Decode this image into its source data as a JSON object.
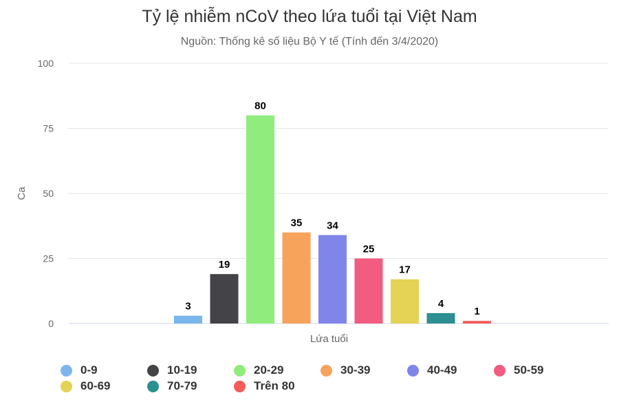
{
  "chart_data": {
    "type": "bar",
    "title": "Tỷ lệ nhiễm nCoV theo lứa tuổi tại Việt Nam",
    "subtitle": "Nguồn: Thống kê số liệu Bộ Y tế (Tính đến 3/4/2020)",
    "xlabel": "Lứa tuổi",
    "ylabel": "Ca",
    "ylim": [
      0,
      100
    ],
    "yticks": [
      0,
      25,
      50,
      75,
      100
    ],
    "grid": true,
    "legend_position": "bottom",
    "series": [
      {
        "name": "0-9",
        "value": 3,
        "color": "#7cb5ec"
      },
      {
        "name": "10-19",
        "value": 19,
        "color": "#434348"
      },
      {
        "name": "20-29",
        "value": 80,
        "color": "#90ed7d"
      },
      {
        "name": "30-39",
        "value": 35,
        "color": "#f7a35c"
      },
      {
        "name": "40-49",
        "value": 34,
        "color": "#8085e9"
      },
      {
        "name": "50-59",
        "value": 25,
        "color": "#f15c80"
      },
      {
        "name": "60-69",
        "value": 17,
        "color": "#e4d354"
      },
      {
        "name": "70-79",
        "value": 4,
        "color": "#2b908f"
      },
      {
        "name": "Trên 80",
        "value": 1,
        "color": "#f45b5b"
      }
    ]
  }
}
